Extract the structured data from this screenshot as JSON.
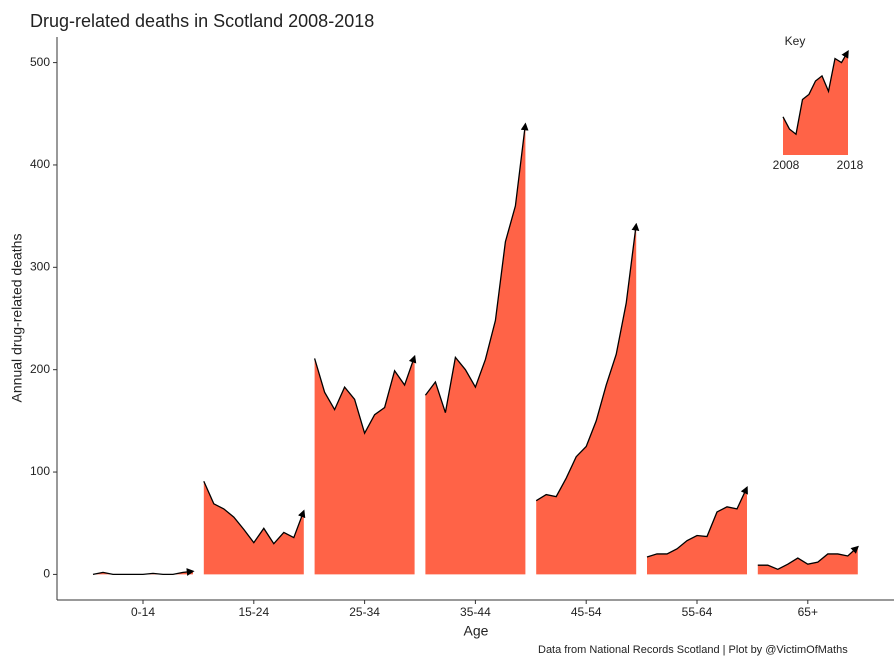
{
  "chart_data": {
    "type": "area-multiples",
    "title": "Drug-related deaths in Scotland 2008-2018",
    "y_label": "Annual drug-related deaths",
    "x_label": "Age",
    "caption": "Data from National Records Scotland | Plot by @VictimOfMaths",
    "color": "#ff6347",
    "categories": [
      "0-14",
      "15-24",
      "25-34",
      "35-44",
      "45-54",
      "55-64",
      "65+"
    ],
    "values": [
      [
        0,
        2,
        0,
        0,
        0,
        0,
        1,
        0,
        0,
        2,
        3
      ],
      [
        91,
        69,
        64,
        56,
        44,
        31,
        45,
        30,
        41,
        36,
        62
      ],
      [
        211,
        178,
        161,
        183,
        171,
        138,
        156,
        163,
        199,
        185,
        213
      ],
      [
        175,
        188,
        158,
        212,
        200,
        183,
        210,
        248,
        325,
        360,
        440
      ],
      [
        72,
        78,
        76,
        94,
        115,
        125,
        150,
        185,
        215,
        265,
        342
      ],
      [
        17,
        20,
        20,
        25,
        33,
        38,
        37,
        61,
        66,
        64,
        85
      ],
      [
        9,
        9,
        5,
        10,
        16,
        10,
        12,
        20,
        20,
        18,
        27
      ]
    ],
    "ylim": [
      -25,
      525
    ],
    "yticks": [
      0,
      100,
      200,
      300,
      400,
      500
    ],
    "key": {
      "title": "Key",
      "x_labels": [
        "2008",
        "2018"
      ],
      "values": [
        447,
        435,
        430,
        464,
        469,
        482,
        487,
        472,
        504,
        500,
        511
      ]
    }
  }
}
